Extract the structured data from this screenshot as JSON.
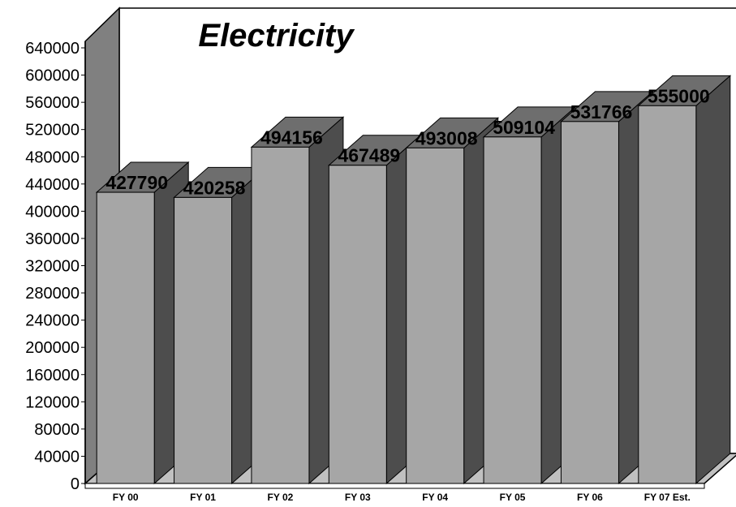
{
  "chart_data": {
    "type": "bar",
    "title": "Electricity",
    "categories": [
      "FY 00",
      "FY 01",
      "FY 02",
      "FY 03",
      "FY 04",
      "FY 05",
      "FY 06",
      "FY 07 Est."
    ],
    "values": [
      427790,
      420258,
      494156,
      467489,
      493008,
      509104,
      531766,
      555000
    ],
    "ylim": [
      0,
      640000
    ],
    "yticks": [
      0,
      40000,
      80000,
      120000,
      160000,
      200000,
      240000,
      280000,
      320000,
      360000,
      400000,
      440000,
      480000,
      520000,
      560000,
      600000,
      640000
    ],
    "data_labels": true,
    "grid": false,
    "style": "3d",
    "colors": {
      "bar_front": "#a6a6a6",
      "bar_top": "#6e6e6e",
      "bar_side": "#4d4d4d",
      "wall": "#808080",
      "floor": "#c0c0c0"
    }
  }
}
